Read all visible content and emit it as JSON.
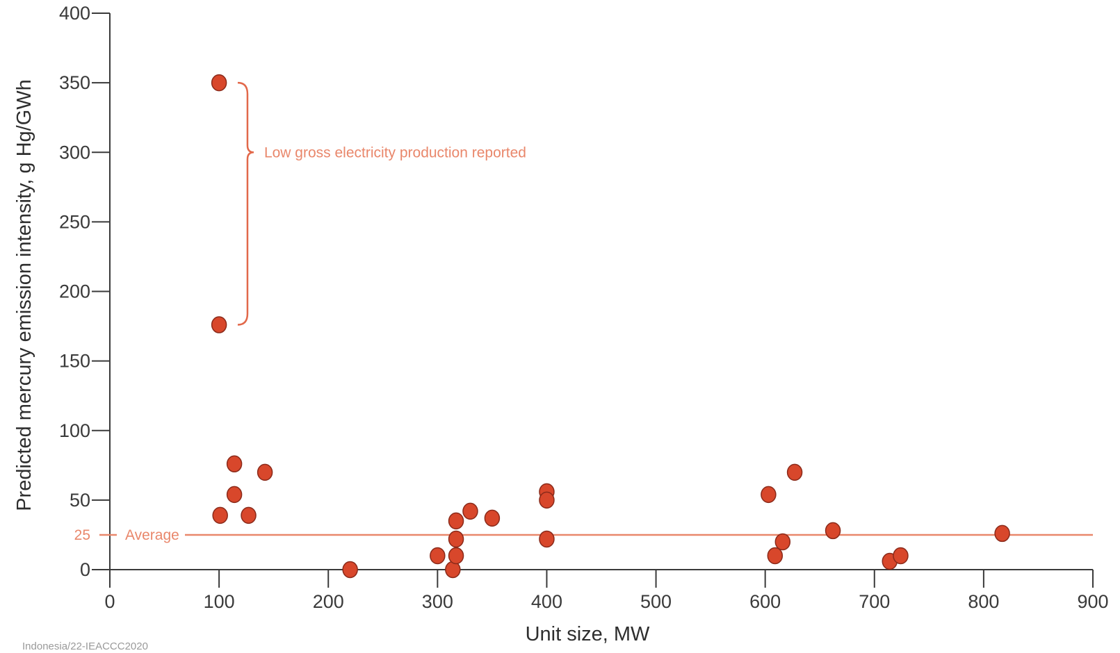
{
  "chart_data": {
    "type": "scatter",
    "xlabel": "Unit size, MW",
    "ylabel": "Predicted mercury emission intensity, g Hg/GWh",
    "xlim": [
      0,
      900
    ],
    "ylim": [
      0,
      400
    ],
    "x_ticks": [
      "0",
      "100",
      "200",
      "300",
      "400",
      "500",
      "600",
      "700",
      "800",
      "900"
    ],
    "y_ticks": [
      "0",
      "50",
      "100",
      "150",
      "200",
      "250",
      "300",
      "350",
      "400"
    ],
    "y_extra_tick": {
      "value": 25,
      "label": "25"
    },
    "grid": false,
    "points": [
      {
        "x": 100,
        "y": 350
      },
      {
        "x": 100,
        "y": 176
      },
      {
        "x": 101,
        "y": 39
      },
      {
        "x": 114,
        "y": 76
      },
      {
        "x": 114,
        "y": 54
      },
      {
        "x": 127,
        "y": 39
      },
      {
        "x": 142,
        "y": 70
      },
      {
        "x": 220,
        "y": 0
      },
      {
        "x": 300,
        "y": 10
      },
      {
        "x": 314,
        "y": 0
      },
      {
        "x": 317,
        "y": 10
      },
      {
        "x": 317,
        "y": 22
      },
      {
        "x": 317,
        "y": 35
      },
      {
        "x": 330,
        "y": 42
      },
      {
        "x": 350,
        "y": 37
      },
      {
        "x": 400,
        "y": 56
      },
      {
        "x": 400,
        "y": 50
      },
      {
        "x": 400,
        "y": 22
      },
      {
        "x": 603,
        "y": 54
      },
      {
        "x": 609,
        "y": 10
      },
      {
        "x": 616,
        "y": 20
      },
      {
        "x": 627,
        "y": 70
      },
      {
        "x": 662,
        "y": 28
      },
      {
        "x": 714,
        "y": 6
      },
      {
        "x": 724,
        "y": 10
      },
      {
        "x": 817,
        "y": 26
      }
    ],
    "average": {
      "value": 25,
      "label": "Average"
    },
    "annotation": {
      "text": "Low gross electricity production reported",
      "y_from": 176,
      "y_to": 350
    },
    "colors": {
      "point_fill": "#d8472b",
      "point_stroke": "#8a2a1a",
      "accent": "#e9876b",
      "bracket": "#e2684a",
      "axis": "#3a3a3a"
    }
  },
  "source_note": "Indonesia/22-IEACCC2020"
}
